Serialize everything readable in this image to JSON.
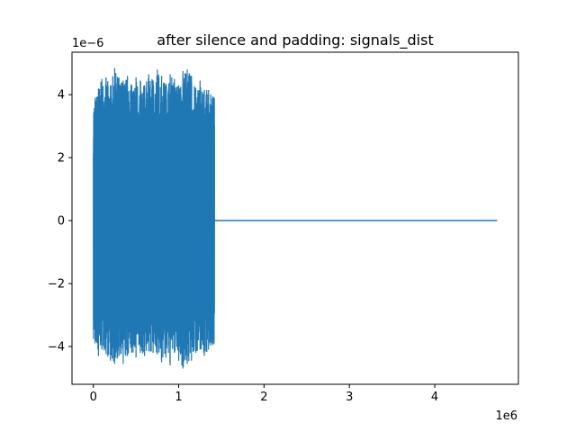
{
  "chart_data": {
    "type": "line",
    "title": "after silence and padding: signals_dist",
    "xlabel": "",
    "ylabel": "",
    "x_offset_label": "1e6",
    "y_offset_label": "1e−6",
    "xlim": [
      -250000,
      4980000
    ],
    "ylim": [
      -5.2e-06,
      5.35e-06
    ],
    "x_ticks": [
      0,
      1000000,
      2000000,
      3000000,
      4000000
    ],
    "x_tick_labels": [
      "0",
      "1",
      "2",
      "3",
      "4"
    ],
    "y_ticks": [
      -4e-06,
      -2e-06,
      0,
      2e-06,
      4e-06
    ],
    "y_tick_labels": [
      "−4",
      "−2",
      "0",
      "2",
      "4"
    ],
    "grid": false,
    "line_color": "#1f77b4",
    "series": [
      {
        "active_x_range": [
          0,
          1420000
        ],
        "active_peak_amplitude": 4.7e-06,
        "envelope_top": [
          [
            20000,
            3.9e-06
          ],
          [
            60000,
            4.2e-06
          ],
          [
            100000,
            4.5e-06
          ],
          [
            150000,
            4.55e-06
          ],
          [
            200000,
            4.3e-06
          ],
          [
            250000,
            4.85e-06
          ],
          [
            300000,
            4.55e-06
          ],
          [
            350000,
            4.45e-06
          ],
          [
            400000,
            4.6e-06
          ],
          [
            450000,
            4.3e-06
          ],
          [
            500000,
            4.55e-06
          ],
          [
            550000,
            4.45e-06
          ],
          [
            600000,
            4.3e-06
          ],
          [
            650000,
            4.65e-06
          ],
          [
            700000,
            4.45e-06
          ],
          [
            750000,
            4.8e-06
          ],
          [
            800000,
            4.6e-06
          ],
          [
            850000,
            4.35e-06
          ],
          [
            900000,
            4.65e-06
          ],
          [
            950000,
            4.5e-06
          ],
          [
            1000000,
            4.3e-06
          ],
          [
            1050000,
            4.75e-06
          ],
          [
            1100000,
            4.8e-06
          ],
          [
            1150000,
            4.6e-06
          ],
          [
            1200000,
            4.2e-06
          ],
          [
            1250000,
            4.45e-06
          ],
          [
            1300000,
            4.15e-06
          ],
          [
            1350000,
            4.15e-06
          ],
          [
            1400000,
            3.95e-06
          ]
        ],
        "envelope_bottom": [
          [
            20000,
            -3.9e-06
          ],
          [
            60000,
            -4.3e-06
          ],
          [
            100000,
            -4.1e-06
          ],
          [
            150000,
            -4.25e-06
          ],
          [
            200000,
            -4.45e-06
          ],
          [
            250000,
            -4.55e-06
          ],
          [
            300000,
            -4.3e-06
          ],
          [
            350000,
            -4.55e-06
          ],
          [
            400000,
            -4.3e-06
          ],
          [
            450000,
            -4.2e-06
          ],
          [
            500000,
            -4.35e-06
          ],
          [
            550000,
            -4.2e-06
          ],
          [
            600000,
            -4.3e-06
          ],
          [
            650000,
            -4.15e-06
          ],
          [
            700000,
            -4.2e-06
          ],
          [
            750000,
            -4.25e-06
          ],
          [
            800000,
            -4.5e-06
          ],
          [
            850000,
            -4.35e-06
          ],
          [
            900000,
            -4.6e-06
          ],
          [
            950000,
            -4.2e-06
          ],
          [
            1000000,
            -4.45e-06
          ],
          [
            1050000,
            -4.7e-06
          ],
          [
            1100000,
            -4.55e-06
          ],
          [
            1150000,
            -4.45e-06
          ],
          [
            1200000,
            -4.2e-06
          ],
          [
            1250000,
            -4.1e-06
          ],
          [
            1300000,
            -4.3e-06
          ],
          [
            1350000,
            -4.1e-06
          ],
          [
            1400000,
            -3.95e-06
          ]
        ],
        "flat_segment": {
          "x_start": 1420000,
          "x_end": 4730000,
          "y": 0
        }
      }
    ]
  }
}
